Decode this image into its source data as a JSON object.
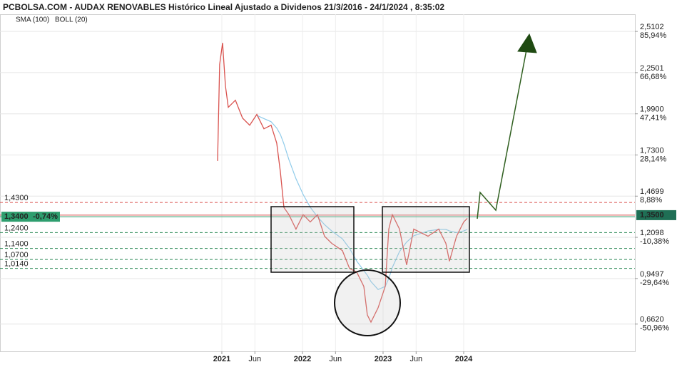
{
  "chart_data": {
    "type": "line",
    "title": "PCBOLSA.COM - AUDAX RENOVABLES Histórico Lineal Ajustado a Dividenos 21/3/2016 - 24/1/2024 , 8:35:02",
    "boll_label": "BOLL (20)",
    "x": [
      2020.947,
      2020.973,
      2021.009,
      2021.044,
      2021.08,
      2021.168,
      2021.257,
      2021.345,
      2021.434,
      2021.522,
      2021.611,
      2021.681,
      2021.726,
      2021.77,
      2021.832,
      2021.92,
      2022.009,
      2022.097,
      2022.186,
      2022.274,
      2022.363,
      2022.496,
      2022.584,
      2022.673,
      2022.761,
      2022.805,
      2022.85,
      2022.938,
      2023.027,
      2023.071,
      2023.115,
      2023.204,
      2023.292,
      2023.381,
      2023.558,
      2023.69,
      2023.779,
      2023.823,
      2023.912,
      2024.0,
      2024.044
    ],
    "series": [
      {
        "color": "#d9534f",
        "values": [
          1.692,
          2.302,
          2.438,
          2.167,
          2.031,
          2.076,
          1.963,
          1.918,
          1.986,
          1.895,
          1.918,
          1.805,
          1.624,
          1.398,
          1.353,
          1.262,
          1.353,
          1.307,
          1.353,
          1.217,
          1.172,
          1.126,
          1.013,
          0.991,
          0.9,
          0.72,
          0.674,
          0.765,
          0.9,
          1.262,
          1.353,
          1.262,
          1.036,
          1.262,
          1.217,
          1.262,
          1.172,
          1.059,
          1.217,
          1.307,
          1.33
        ]
      },
      {
        "name": "SMA (100)",
        "color": "#8fcbea",
        "values": [
          null,
          null,
          null,
          null,
          null,
          null,
          null,
          null,
          1.98,
          1.96,
          1.94,
          1.9,
          1.86,
          1.8,
          1.7,
          1.58,
          1.48,
          1.4,
          1.34,
          1.29,
          1.25,
          1.2,
          1.14,
          1.06,
          1.0,
          0.97,
          0.93,
          0.88,
          0.9,
          0.95,
          1.02,
          1.12,
          1.18,
          1.22,
          1.25,
          1.26,
          1.26,
          1.25,
          1.24,
          1.25,
          1.26
        ]
      }
    ],
    "xlim": [
      2018.248,
      2026.124
    ],
    "xticks": [
      2021,
      {
        "value": 2021.41,
        "label": "Jun"
      },
      2022,
      {
        "value": 2022.41,
        "label": "Jun"
      },
      2023,
      {
        "value": 2023.41,
        "label": "Jun"
      },
      2024
    ],
    "ylim": [
      0.49,
      2.6187
    ],
    "yticks": [
      {
        "value": 2.5102,
        "label": "2,5102"
      },
      {
        "value": 2.2501,
        "label": "2,2501"
      },
      {
        "value": 1.99,
        "label": "1,9900"
      },
      {
        "value": 1.73,
        "label": "1,7300"
      },
      {
        "value": 1.4699,
        "label": "1,4699"
      },
      {
        "value": 1.2098,
        "label": "1,2098"
      },
      {
        "value": 0.9497,
        "label": "0,9497"
      },
      {
        "value": 0.662,
        "label": "0,6620"
      }
    ],
    "ytick_changes": [
      {
        "value": 85.94,
        "label": "85,94%"
      },
      {
        "value": 66.68,
        "label": "66,68%"
      },
      {
        "value": 47.41,
        "label": "47,41%"
      },
      {
        "value": 28.14,
        "label": "28,14%"
      },
      {
        "value": 8.88,
        "label": "8,88%"
      },
      {
        "value": -10.38,
        "label": "-10,38%"
      },
      {
        "value": -29.64,
        "label": "-29,64%"
      },
      {
        "value": -50.96,
        "label": "-50,96%"
      }
    ],
    "levels": [
      {
        "value": 1.43,
        "label": "1,4300",
        "color": "#d9534f"
      },
      {
        "value": 1.24,
        "label": "1,2400",
        "color": "#2e8b57"
      },
      {
        "value": 1.14,
        "label": "1,1400",
        "color": "#2e8b57"
      },
      {
        "value": 1.07,
        "label": "1,0700",
        "color": "#2e8b57"
      },
      {
        "value": 1.014,
        "label": "1,0140",
        "color": "#2e8b57"
      }
    ],
    "last_price": {
      "value": 1.35,
      "label": "1,3500",
      "color": "#d9534f",
      "box": "#1f6f55"
    },
    "current_price": {
      "value": 1.34,
      "label": "1,3400",
      "change": {
        "value": -0.74,
        "label": "-0,74%"
      },
      "color": "#2e9e6e"
    },
    "grid": true
  }
}
